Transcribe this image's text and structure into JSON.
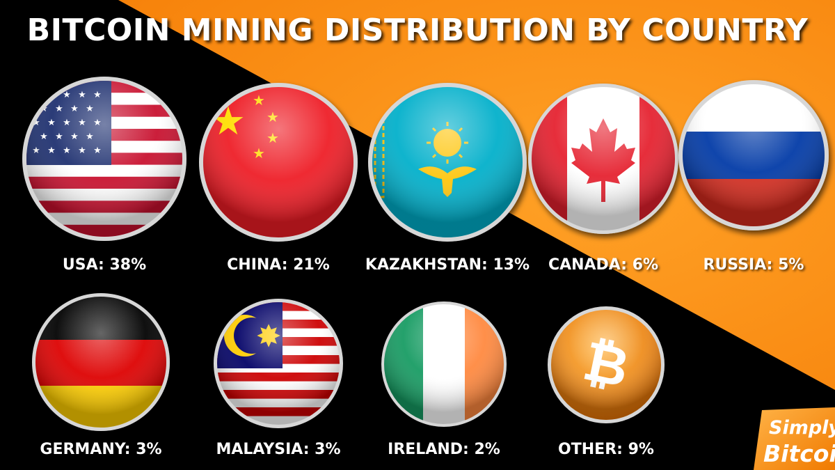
{
  "title": "BITCOIN MINING DISTRIBUTION BY COUNTRY",
  "colors": {
    "orange": "#f7890e",
    "black": "#000000"
  },
  "items": [
    {
      "label": "USA: 38%",
      "icon": "usa-flag-icon"
    },
    {
      "label": "CHINA: 21%",
      "icon": "china-flag-icon"
    },
    {
      "label": "KAZAKHSTAN: 13%",
      "icon": "kazakhstan-flag-icon"
    },
    {
      "label": "CANADA: 6%",
      "icon": "canada-flag-icon"
    },
    {
      "label": "RUSSIA: 5%",
      "icon": "russia-flag-icon"
    },
    {
      "label": "GERMANY: 3%",
      "icon": "germany-flag-icon"
    },
    {
      "label": "MALAYSIA: 3%",
      "icon": "malaysia-flag-icon"
    },
    {
      "label": "IRELAND: 2%",
      "icon": "ireland-flag-icon"
    },
    {
      "label": "OTHER: 9%",
      "icon": "bitcoin-icon"
    }
  ],
  "logo": {
    "line1": "Simply",
    "line2": "Bitcoin"
  }
}
